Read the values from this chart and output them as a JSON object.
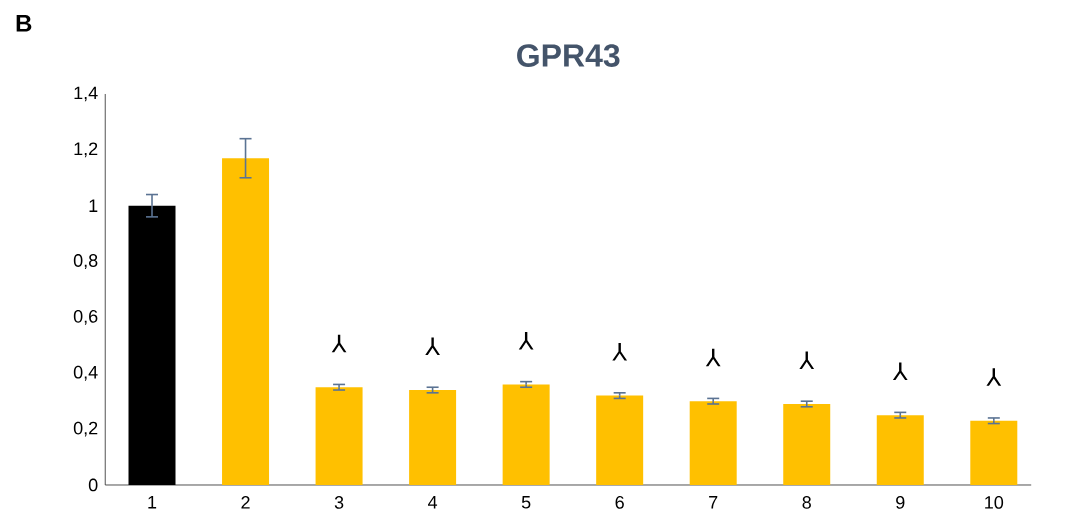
{
  "chart_data": {
    "type": "bar",
    "title": "GPR43",
    "categories": [
      "1",
      "2",
      "3",
      "4",
      "5",
      "6",
      "7",
      "8",
      "9",
      "10"
    ],
    "values": [
      1.0,
      1.17,
      0.35,
      0.34,
      0.36,
      0.32,
      0.3,
      0.29,
      0.25,
      0.23
    ],
    "errors": [
      0.04,
      0.07,
      0.01,
      0.01,
      0.01,
      0.01,
      0.01,
      0.01,
      0.01,
      0.01
    ],
    "colors": [
      "#000000",
      "#ffc000",
      "#ffc000",
      "#ffc000",
      "#ffc000",
      "#ffc000",
      "#ffc000",
      "#ffc000",
      "#ffc000",
      "#ffc000"
    ],
    "ylim": [
      0,
      1.4
    ],
    "yticks": [
      0,
      {
        "value": 0.2,
        "label": "0,2"
      },
      {
        "value": 0.4,
        "label": "0,4"
      },
      {
        "value": 0.6,
        "label": "0,6"
      },
      {
        "value": 0.8,
        "label": "0,8"
      },
      1,
      {
        "value": 1.2,
        "label": "1,2"
      },
      {
        "value": 1.4,
        "label": "1,4"
      }
    ],
    "grid": false,
    "annotations": [
      "B",
      "⅄",
      "⅄",
      "⅄",
      "⅄",
      "⅄",
      "⅄",
      "⅄",
      "⅄"
    ]
  }
}
